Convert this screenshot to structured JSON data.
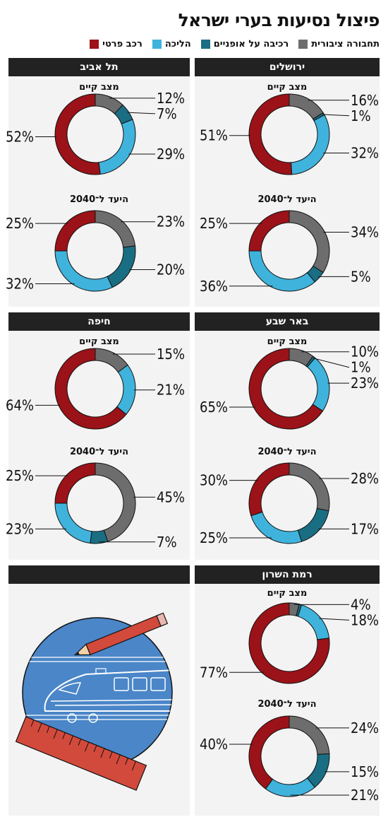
{
  "title": "פיצול נסיעות בערי ישראל",
  "legend": [
    {
      "label": "תחבורה ציבורית",
      "color": "#6d6d6d"
    },
    {
      "label": "רכיבה על אופניים",
      "color": "#1a6e83"
    },
    {
      "label": "הליכה",
      "color": "#3fb3dc"
    },
    {
      "label": "רכב פרטי",
      "color": "#9b1218"
    }
  ],
  "chart_data": [
    {
      "type": "pie",
      "city": "ירושלים",
      "subtitle": "מצב קיים",
      "categories": [
        "תחבורה ציבורית",
        "רכיבה על אופניים",
        "הליכה",
        "רכב פרטי"
      ],
      "values": [
        16,
        1,
        32,
        51
      ],
      "labels": [
        "16%",
        "1%",
        "32%",
        "51%"
      ]
    },
    {
      "type": "pie",
      "city": "ירושלים",
      "subtitle": "היעד ל־2040",
      "categories": [
        "תחבורה ציבורית",
        "רכיבה על אופניים",
        "הליכה",
        "רכב פרטי"
      ],
      "values": [
        34,
        5,
        36,
        25
      ],
      "labels": [
        "34%",
        "5%",
        "36%",
        "25%"
      ]
    },
    {
      "type": "pie",
      "city": "תל אביב",
      "subtitle": "מצב קיים",
      "categories": [
        "תחבורה ציבורית",
        "רכיבה על אופניים",
        "הליכה",
        "רכב פרטי"
      ],
      "values": [
        12,
        7,
        29,
        52
      ],
      "labels": [
        "12%",
        "7%",
        "29%",
        "52%"
      ]
    },
    {
      "type": "pie",
      "city": "תל אביב",
      "subtitle": "היעד ל־2040",
      "categories": [
        "תחבורה ציבורית",
        "רכיבה על אופניים",
        "הליכה",
        "רכב פרטי"
      ],
      "values": [
        23,
        20,
        32,
        25
      ],
      "labels": [
        "23%",
        "20%",
        "32%",
        "25%"
      ]
    },
    {
      "type": "pie",
      "city": "באר שבע",
      "subtitle": "מצב קיים",
      "categories": [
        "תחבורה ציבורית",
        "רכיבה על אופניים",
        "הליכה",
        "רכב פרטי"
      ],
      "values": [
        10,
        1,
        23,
        65
      ],
      "labels": [
        "10%",
        "1%",
        "23%",
        "65%"
      ]
    },
    {
      "type": "pie",
      "city": "באר שבע",
      "subtitle": "היעד ל־2040",
      "categories": [
        "תחבורה ציבורית",
        "רכיבה על אופניים",
        "הליכה",
        "רכב פרטי"
      ],
      "values": [
        28,
        17,
        25,
        30
      ],
      "labels": [
        "28%",
        "17%",
        "25%",
        "30%"
      ]
    },
    {
      "type": "pie",
      "city": "חיפה",
      "subtitle": "מצב קיים",
      "categories": [
        "תחבורה ציבורית",
        "רכיבה על אופניים",
        "הליכה",
        "רכב פרטי"
      ],
      "values": [
        15,
        0,
        21,
        64
      ],
      "labels": [
        "15%",
        "",
        "21%",
        "64%"
      ]
    },
    {
      "type": "pie",
      "city": "חיפה",
      "subtitle": "היעד ל־2040",
      "categories": [
        "תחבורה ציבורית",
        "רכיבה על אופניים",
        "הליכה",
        "רכב פרטי"
      ],
      "values": [
        45,
        7,
        23,
        25
      ],
      "labels": [
        "45%",
        "7%",
        "23%",
        "25%"
      ]
    },
    {
      "type": "pie",
      "city": "רמת השרון",
      "subtitle": "מצב קיים",
      "categories": [
        "תחבורה ציבורית",
        "רכיבה על אופניים",
        "הליכה",
        "רכב פרטי"
      ],
      "values": [
        4,
        1,
        18,
        77
      ],
      "labels": [
        "4%",
        "",
        "18%",
        "77%"
      ]
    },
    {
      "type": "pie",
      "city": "רמת השרון",
      "subtitle": "היעד ל־2040",
      "categories": [
        "תחבורה ציבורית",
        "רכיבה על אופניים",
        "הליכה",
        "רכב פרטי"
      ],
      "values": [
        24,
        15,
        21,
        40
      ],
      "labels": [
        "24%",
        "15%",
        "21%",
        "40%"
      ]
    }
  ]
}
